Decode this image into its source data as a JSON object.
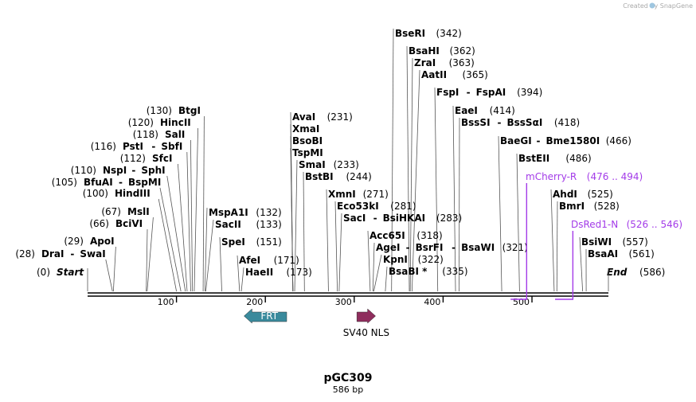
{
  "watermark": "Created by SnapGene",
  "plasmid": {
    "name": "pGC309",
    "length_label": "586 bp"
  },
  "ends": {
    "start": {
      "label": "Start",
      "pos": "(0)",
      "bp": 0
    },
    "end": {
      "label": "End",
      "pos": "(586)",
      "bp": 586
    }
  },
  "ticks": [
    {
      "bp": 100,
      "label": "100"
    },
    {
      "bp": 200,
      "label": "200"
    },
    {
      "bp": 300,
      "label": "300"
    },
    {
      "bp": 400,
      "label": "400"
    },
    {
      "bp": 500,
      "label": "500"
    }
  ],
  "sites_left": [
    {
      "id": "btgi",
      "bp": 130,
      "pos": "(130)",
      "names": [
        "BtgI"
      ]
    },
    {
      "id": "hincii",
      "bp": 120,
      "pos": "(120)",
      "names": [
        "HincII"
      ]
    },
    {
      "id": "sali",
      "bp": 118,
      "pos": "(118)",
      "names": [
        "SalI"
      ]
    },
    {
      "id": "psti",
      "bp": 116,
      "pos": "(116)",
      "names": [
        "PstI",
        "SbfI"
      ]
    },
    {
      "id": "sfci",
      "bp": 112,
      "pos": "(112)",
      "names": [
        "SfcI"
      ]
    },
    {
      "id": "nspi",
      "bp": 110,
      "pos": "(110)",
      "names": [
        "NspI",
        "SphI"
      ]
    },
    {
      "id": "bfuai",
      "bp": 105,
      "pos": "(105)",
      "names": [
        "BfuAI",
        "BspMI"
      ]
    },
    {
      "id": "hindiii",
      "bp": 100,
      "pos": "(100)",
      "names": [
        "HindIII"
      ]
    },
    {
      "id": "msli",
      "bp": 67,
      "pos": "(67)",
      "names": [
        "MslI"
      ]
    },
    {
      "id": "bcivi",
      "bp": 66,
      "pos": "(66)",
      "names": [
        "BciVI"
      ]
    },
    {
      "id": "apoi",
      "bp": 29,
      "pos": "(29)",
      "names": [
        "ApoI"
      ]
    },
    {
      "id": "drai",
      "bp": 28,
      "pos": "(28)",
      "names": [
        "DraI",
        "SwaI"
      ]
    }
  ],
  "sites_right": [
    {
      "id": "bseri",
      "bp": 342,
      "pos": "(342)",
      "names": [
        "BseRI"
      ]
    },
    {
      "id": "bsahi",
      "bp": 362,
      "pos": "(362)",
      "names": [
        "BsaHI"
      ]
    },
    {
      "id": "zrai",
      "bp": 363,
      "pos": "(363)",
      "names": [
        "ZraI"
      ]
    },
    {
      "id": "aatii",
      "bp": 365,
      "pos": "(365)",
      "names": [
        "AatII"
      ]
    },
    {
      "id": "fspi",
      "bp": 394,
      "pos": "(394)",
      "names": [
        "FspI",
        "FspAI"
      ]
    },
    {
      "id": "eaei",
      "bp": 414,
      "pos": "(414)",
      "names": [
        "EaeI"
      ]
    },
    {
      "id": "bsssi",
      "bp": 418,
      "pos": "(418)",
      "names": [
        "BssSI",
        "BssSαI"
      ]
    },
    {
      "id": "baegi",
      "bp": 466,
      "pos": "(466)",
      "names": [
        "BaeGI",
        "Bme1580I"
      ]
    },
    {
      "id": "bsteii",
      "bp": 486,
      "pos": "(486)",
      "names": [
        "BstEII"
      ]
    },
    {
      "id": "ahdi",
      "bp": 525,
      "pos": "(525)",
      "names": [
        "AhdI"
      ]
    },
    {
      "id": "bmri",
      "bp": 528,
      "pos": "(528)",
      "names": [
        "BmrI"
      ]
    },
    {
      "id": "bsiwi",
      "bp": 557,
      "pos": "(557)",
      "names": [
        "BsiWI"
      ]
    },
    {
      "id": "bsaai",
      "bp": 561,
      "pos": "(561)",
      "names": [
        "BsaAI"
      ]
    },
    {
      "id": "aval",
      "bp": 231,
      "pos": "(231)",
      "names": [
        "AvaI"
      ]
    },
    {
      "id": "xmai",
      "bp": 231,
      "pos": "",
      "names": [
        "XmaI"
      ]
    },
    {
      "id": "bsobi",
      "bp": 231,
      "pos": "",
      "names": [
        "BsoBI"
      ]
    },
    {
      "id": "tspmi",
      "bp": 231,
      "pos": "",
      "names": [
        "TspMI"
      ]
    },
    {
      "id": "smai",
      "bp": 233,
      "pos": "(233)",
      "names": [
        "SmaI"
      ]
    },
    {
      "id": "bstbi",
      "bp": 244,
      "pos": "(244)",
      "names": [
        "BstBI"
      ]
    },
    {
      "id": "xmni",
      "bp": 271,
      "pos": "(271)",
      "names": [
        "XmnI"
      ]
    },
    {
      "id": "eco53ki",
      "bp": 281,
      "pos": "(281)",
      "names": [
        "Eco53kI"
      ]
    },
    {
      "id": "saci",
      "bp": 283,
      "pos": "(283)",
      "names": [
        "SacI",
        "BsiHKAI"
      ]
    },
    {
      "id": "acc65i",
      "bp": 318,
      "pos": "(318)",
      "names": [
        "Acc65I"
      ]
    },
    {
      "id": "agei",
      "bp": 321,
      "pos": "(321)",
      "names": [
        "AgeI",
        "BsrFI",
        "BsaWI"
      ]
    },
    {
      "id": "kpni",
      "bp": 322,
      "pos": "(322)",
      "names": [
        "KpnI"
      ]
    },
    {
      "id": "bsabi",
      "bp": 335,
      "pos": "(335)",
      "names": [
        "BsaBI *"
      ]
    },
    {
      "id": "mspa1i",
      "bp": 132,
      "pos": "(132)",
      "names": [
        "MspA1I"
      ]
    },
    {
      "id": "sacii",
      "bp": 133,
      "pos": "(133)",
      "names": [
        "SacII"
      ]
    },
    {
      "id": "spei",
      "bp": 151,
      "pos": "(151)",
      "names": [
        "SpeI"
      ]
    },
    {
      "id": "afei",
      "bp": 171,
      "pos": "(171)",
      "names": [
        "AfeI"
      ]
    },
    {
      "id": "haeii",
      "bp": 173,
      "pos": "(173)",
      "names": [
        "HaeII"
      ]
    }
  ],
  "primers": [
    {
      "id": "mcherry-r",
      "label": "mCherry-R",
      "range": "(476 .. 494)",
      "start": 476,
      "end": 494,
      "direction": "reverse"
    },
    {
      "id": "dsred1-n",
      "label": "DsRed1-N",
      "range": "(526 .. 546)",
      "start": 526,
      "end": 546,
      "direction": "reverse"
    }
  ],
  "features": [
    {
      "id": "frt",
      "label": "FRT",
      "start": 176,
      "end": 224,
      "direction": "reverse",
      "color": "#3a8a9c",
      "label_inside": true
    },
    {
      "id": "sv40-nls",
      "label": "SV40 NLS",
      "start": 303,
      "end": 324,
      "direction": "forward",
      "color": "#8f2d5d",
      "label_inside": false
    }
  ]
}
